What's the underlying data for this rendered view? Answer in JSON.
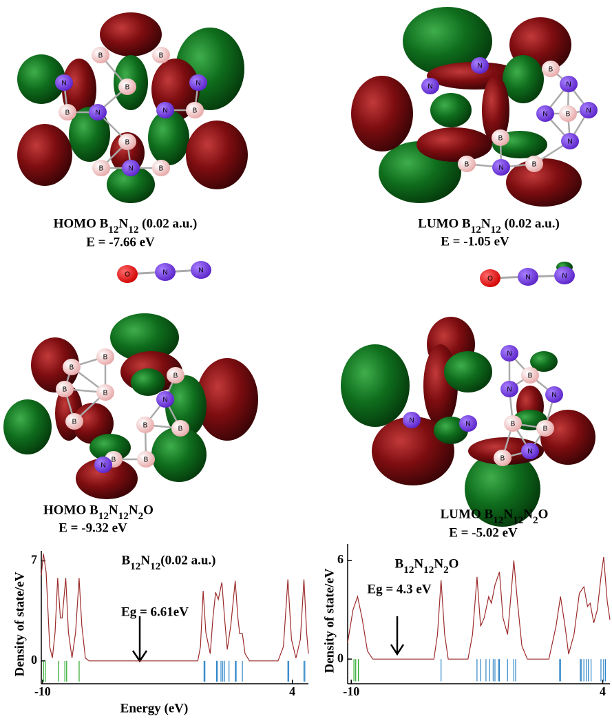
{
  "panels": [
    {
      "title": "HOMO B12N12 (0.02 a.u.)",
      "energy": "E = -7.66 eV",
      "atoms": [
        "B",
        "B",
        "N",
        "B",
        "B",
        "N",
        "N",
        "B",
        "B",
        "B",
        "N",
        "B",
        "N"
      ]
    },
    {
      "title": "LUMO B12N12 (0.02 a.u.)",
      "energy": "E = -1.05 eV",
      "atoms": [
        "N",
        "N",
        "N",
        "B",
        "N",
        "B",
        "N",
        "B",
        "N",
        "B",
        "N",
        "B"
      ]
    },
    {
      "atoms": [
        "O",
        "N",
        "N"
      ]
    },
    {
      "atoms": [
        "O",
        "N",
        "N"
      ]
    },
    {
      "title": "HOMO B12N12N2O",
      "energy": "E = -9.32 eV",
      "atoms": [
        "B",
        "B",
        "B",
        "B",
        "B",
        "N",
        "B",
        "B",
        "B",
        "B",
        "B",
        "N"
      ]
    },
    {
      "title": "LUMO B12N12N2O",
      "energy": "E = -5.02 eV",
      "atoms": [
        "N",
        "B",
        "N",
        "N",
        "B",
        "B",
        "N",
        "N",
        "N",
        "B"
      ]
    }
  ],
  "chart_data": [
    {
      "type": "line",
      "title": "B12N12(0.02 a.u.)",
      "annotation": "Eg = 6.61eV",
      "x_label": "Energy (eV)",
      "y_label": "Density of state/eV",
      "x": [
        -10.07,
        -9.95,
        -9.8,
        -9.6,
        -9.45,
        -9.3,
        -9.15,
        -9.0,
        -8.9,
        -8.7,
        -8.55,
        -8.35,
        -8.15,
        -7.95,
        -7.8,
        -7.6,
        -7.4,
        -1.3,
        -1.15,
        -1.0,
        -0.85,
        -0.6,
        -0.45,
        -0.3,
        -0.15,
        0.05,
        0.2,
        0.35,
        0.55,
        0.8,
        0.95,
        1.05,
        1.2,
        1.35,
        1.6,
        3.2,
        3.5,
        3.75,
        3.95,
        4.2,
        4.45,
        4.65,
        4.8,
        4.9
      ],
      "values": [
        6.0,
        7.5,
        6.2,
        1.0,
        0.2,
        2.0,
        5.8,
        3.0,
        3.0,
        5.8,
        2.0,
        0.2,
        2.0,
        5.8,
        2.5,
        0.2,
        0,
        0,
        1.0,
        4.9,
        2.0,
        0.5,
        3.0,
        4.8,
        4.3,
        5.5,
        3.0,
        0.8,
        2.5,
        5.6,
        3.0,
        1.9,
        1.9,
        0.5,
        0,
        0,
        1.0,
        5.7,
        1.5,
        0.2,
        1.5,
        5.7,
        2.0,
        0.5
      ],
      "color": "#9b2a2a",
      "levels": [
        {
          "color": "#22a522",
          "x": [
            -9.95,
            -9.85,
            -9.1,
            -8.75,
            -8.65,
            -7.95
          ]
        },
        {
          "color": "#2f86c8",
          "x": [
            -0.95,
            -0.9,
            -0.25,
            -0.2,
            0.0,
            0.1,
            0.2,
            0.45,
            0.8,
            0.85,
            1.2,
            3.75,
            3.8,
            4.65,
            4.7
          ]
        }
      ],
      "xlim": [
        -10.07,
        4.9
      ],
      "ylim": [
        -1.6,
        7.7
      ],
      "xticks": [
        -10,
        4
      ],
      "yticks": [
        0,
        7
      ]
    },
    {
      "type": "line",
      "title": "B12N12N2O",
      "annotation": "Eg = 4.3 eV",
      "y_label": "Density of state/eV",
      "x": [
        -10.2,
        -9.9,
        -9.65,
        -9.4,
        -9.1,
        -8.8,
        -5.4,
        -5.2,
        -5.0,
        -4.8,
        -4.6,
        -3.5,
        -3.25,
        -3.0,
        -2.8,
        -2.6,
        -2.35,
        -2.2,
        -2.0,
        -1.75,
        -1.55,
        -1.3,
        -1.1,
        -0.95,
        -0.75,
        -0.5,
        -0.2,
        1.0,
        1.4,
        1.65,
        1.9,
        2.1,
        2.4,
        2.7,
        2.95,
        3.15,
        3.3,
        3.5,
        3.7,
        3.9,
        4.05,
        4.25,
        4.4
      ],
      "values": [
        1.0,
        3.0,
        3.8,
        2.5,
        0.5,
        0,
        0,
        1.5,
        4.8,
        1.5,
        0,
        0,
        1.5,
        5.0,
        2.0,
        2.5,
        3.8,
        3.4,
        4.5,
        5.3,
        2.5,
        1.5,
        4.0,
        6.0,
        3.5,
        0.8,
        0,
        0,
        2.0,
        3.8,
        2.0,
        0.3,
        1.5,
        4.0,
        4.4,
        3.2,
        3.4,
        2.2,
        3.0,
        5.0,
        6.2,
        3.5,
        2.4
      ],
      "color": "#9b2a2a",
      "levels": [
        {
          "color": "#22a522",
          "x": [
            -9.85,
            -9.75,
            -9.6
          ]
        },
        {
          "color": "#2f86c8",
          "x": [
            -5.0,
            -3.0,
            -2.8,
            -2.5,
            -2.3,
            -2.1,
            -2.0,
            -1.8,
            -1.75,
            -1.3,
            -0.95,
            -0.85,
            1.6,
            1.65,
            2.75,
            2.8,
            2.95,
            3.1,
            3.2,
            3.35,
            3.9,
            4.05,
            4.15
          ]
        }
      ],
      "xlim": [
        -10.2,
        4.4
      ],
      "ylim": [
        -1.5,
        7.0
      ],
      "xticks": [
        -10,
        4
      ],
      "yticks": [
        0,
        6
      ]
    }
  ]
}
